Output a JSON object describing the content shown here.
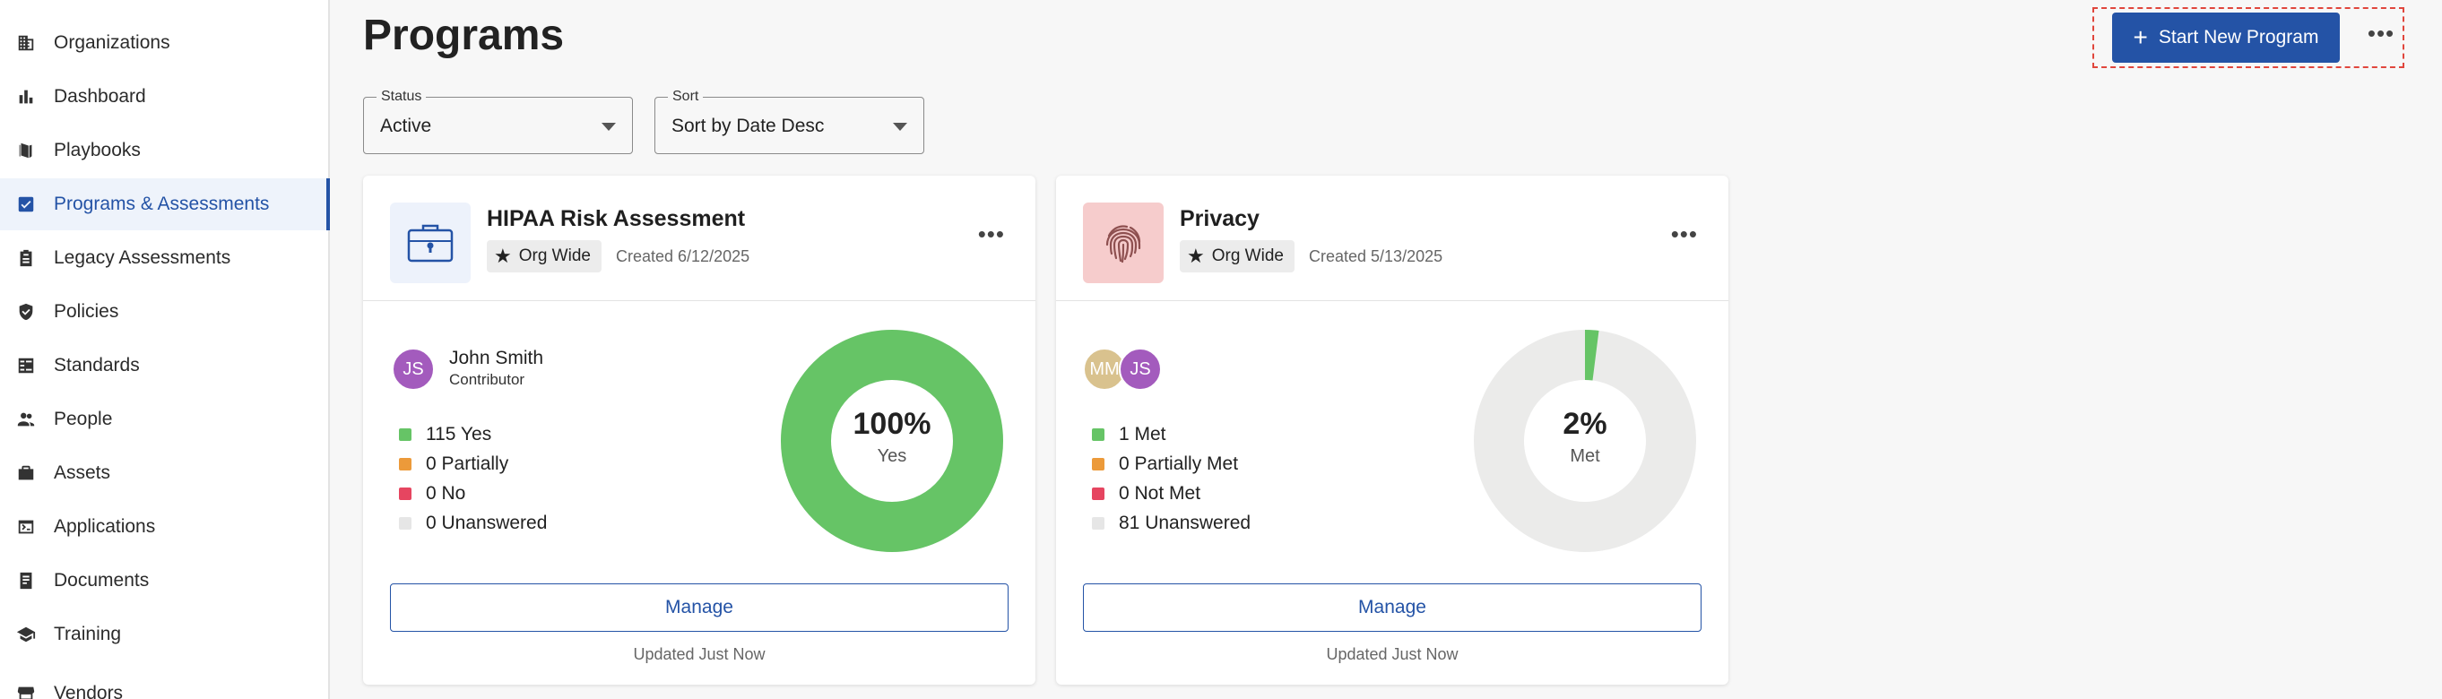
{
  "sidebar": {
    "items": [
      {
        "label": "Organizations",
        "icon": "building-icon"
      },
      {
        "label": "Dashboard",
        "icon": "bar-chart-icon"
      },
      {
        "label": "Playbooks",
        "icon": "book-icon"
      },
      {
        "label": "Programs & Assessments",
        "icon": "checkbox-icon",
        "active": true
      },
      {
        "label": "Legacy Assessments",
        "icon": "clipboard-icon"
      },
      {
        "label": "Policies",
        "icon": "shield-check-icon"
      },
      {
        "label": "Standards",
        "icon": "checklist-icon"
      },
      {
        "label": "People",
        "icon": "people-icon"
      },
      {
        "label": "Assets",
        "icon": "briefcase-icon"
      },
      {
        "label": "Applications",
        "icon": "terminal-window-icon"
      },
      {
        "label": "Documents",
        "icon": "document-icon"
      },
      {
        "label": "Training",
        "icon": "graduation-cap-icon"
      },
      {
        "label": "Vendors",
        "icon": "store-icon"
      }
    ]
  },
  "header": {
    "title": "Programs",
    "start_button_label": "Start New Program",
    "more_label": "•••"
  },
  "filters": {
    "status": {
      "label": "Status",
      "value": "Active"
    },
    "sort": {
      "label": "Sort",
      "value": "Sort by Date Desc"
    }
  },
  "cards": [
    {
      "title": "HIPAA Risk Assessment",
      "tag": "Org Wide",
      "created": "Created 6/12/2025",
      "icon": "briefcase-lock-icon",
      "thumb_bg": "#edf2fb",
      "people": [
        {
          "initials": "JS",
          "color": "#a35bbd"
        }
      ],
      "person_name": "John Smith",
      "person_role": "Contributor",
      "legend": [
        {
          "label": "115 Yes",
          "color": "#66c466"
        },
        {
          "label": "0 Partially",
          "color": "#ec9a3a"
        },
        {
          "label": "0 No",
          "color": "#e64560"
        },
        {
          "label": "0 Unanswered",
          "color": "#e6e6e6"
        }
      ],
      "percent_value": 100,
      "percent": "100%",
      "percent_label": "Yes",
      "manage_label": "Manage",
      "updated": "Updated Just Now"
    },
    {
      "title": "Privacy",
      "tag": "Org Wide",
      "created": "Created 5/13/2025",
      "icon": "fingerprint-icon",
      "thumb_bg": "#f6cccc",
      "people": [
        {
          "initials": "MM",
          "color": "#d9c28e"
        },
        {
          "initials": "JS",
          "color": "#a35bbd"
        }
      ],
      "person_name": "",
      "person_role": "",
      "legend": [
        {
          "label": "1 Met",
          "color": "#66c466"
        },
        {
          "label": "0 Partially Met",
          "color": "#ec9a3a"
        },
        {
          "label": "0 Not Met",
          "color": "#e64560"
        },
        {
          "label": "81 Unanswered",
          "color": "#e6e6e6"
        }
      ],
      "percent_value": 2,
      "percent": "2%",
      "percent_label": "Met",
      "manage_label": "Manage",
      "updated": "Updated Just Now"
    }
  ],
  "colors": {
    "accent": "#2453a6",
    "donut_fill": "#66c466",
    "donut_track": "#ebebea"
  }
}
